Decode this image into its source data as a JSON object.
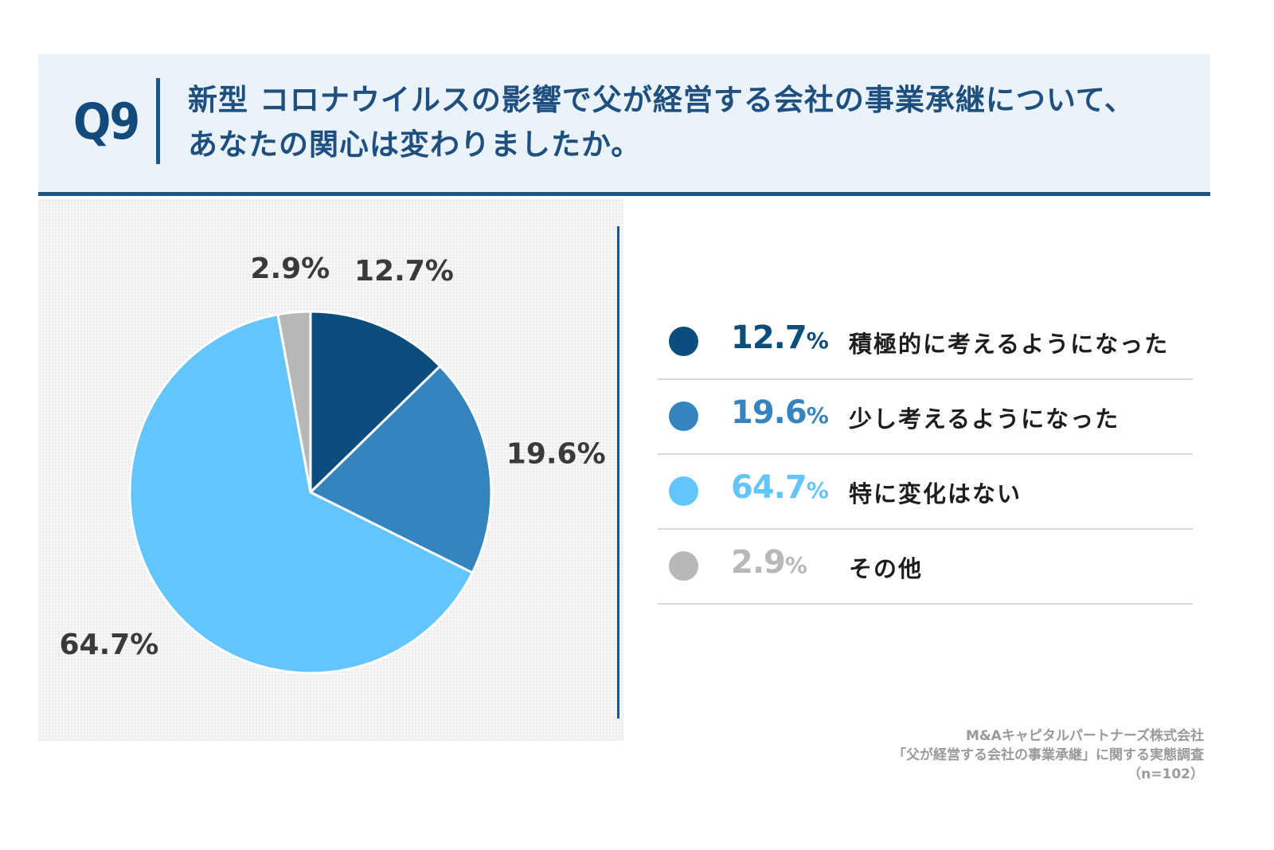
{
  "header": {
    "q_label": "Q9",
    "title_line1": "新型 コロナウイルスの影響で父が経営する会社の事業承継について、",
    "title_line2": "あなたの関心は変わりましたか。"
  },
  "chart_data": {
    "type": "pie",
    "title": "新型 コロナウイルスの影響で父が経営する会社の事業承継について、あなたの関心は変わりましたか。",
    "unit": "%",
    "slices": [
      {
        "label": "積極的に考えるようになった",
        "value": 12.7,
        "value_text": "12.7%",
        "pct_num": "12.7",
        "pct_unit": "%",
        "color": "#0b4d7c"
      },
      {
        "label": "少し考えるようになった",
        "value": 19.6,
        "value_text": "19.6%",
        "pct_num": "19.6",
        "pct_unit": "%",
        "color": "#3584be"
      },
      {
        "label": "特に変化はない",
        "value": 64.7,
        "value_text": "64.7%",
        "pct_num": "64.7",
        "pct_unit": "%",
        "color": "#63c5fb"
      },
      {
        "label": "その他",
        "value": 2.9,
        "value_text": "2.9%",
        "pct_num": "2.9",
        "pct_unit": "%",
        "color": "#b8b8b8"
      }
    ],
    "legend_position": "right"
  },
  "source": {
    "line1": "M&Aキャピタルパートナーズ株式会社",
    "line2": "「父が経営する会社の事業承継」に関する実態調査",
    "line3": "（n=102）"
  }
}
